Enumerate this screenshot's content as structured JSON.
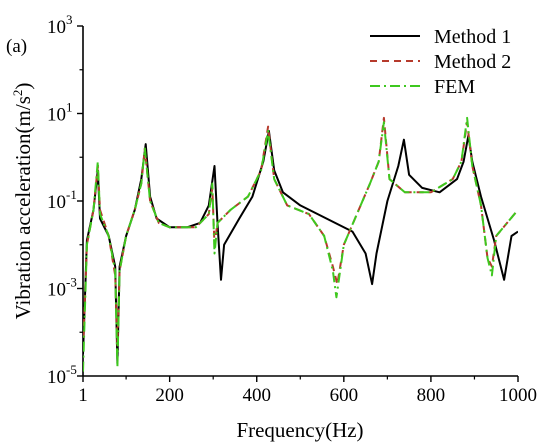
{
  "chart_data": {
    "type": "line",
    "panel_label": "(a)",
    "title": "",
    "xlabel": "Frequency(Hz)",
    "ylabel_main": "Vibration acceleration(m/s",
    "ylabel_sup": "2",
    "ylabel_close": ")",
    "xlim": [
      1,
      1000
    ],
    "ylim_log10": [
      -5,
      3
    ],
    "y_scale": "log",
    "grid": false,
    "legend_position": "top-right",
    "x_ticks": [
      {
        "value": 1,
        "label": "1"
      },
      {
        "value": 200,
        "label": "200"
      },
      {
        "value": 400,
        "label": "400"
      },
      {
        "value": 600,
        "label": "600"
      },
      {
        "value": 800,
        "label": "800"
      },
      {
        "value": 1000,
        "label": "1000"
      }
    ],
    "y_ticks": [
      {
        "exp": -5,
        "base": "10",
        "sup": "-5"
      },
      {
        "exp": -3,
        "base": "10",
        "sup": "-3"
      },
      {
        "exp": -1,
        "base": "10",
        "sup": "-1"
      },
      {
        "exp": 1,
        "base": "10",
        "sup": "1"
      },
      {
        "exp": 3,
        "base": "10",
        "sup": "3"
      }
    ],
    "series": [
      {
        "name": "Method 1",
        "color": "#000000",
        "dash": "",
        "width": 2,
        "points": [
          [
            1,
            -4.5
          ],
          [
            10,
            -1.9
          ],
          [
            25,
            -1.2
          ],
          [
            35,
            -0.3
          ],
          [
            40,
            -1.4
          ],
          [
            60,
            -1.8
          ],
          [
            75,
            -2.5
          ],
          [
            80,
            -4.7
          ],
          [
            85,
            -2.5
          ],
          [
            100,
            -1.8
          ],
          [
            120,
            -1.2
          ],
          [
            135,
            -0.5
          ],
          [
            145,
            0.3
          ],
          [
            155,
            -0.9
          ],
          [
            170,
            -1.4
          ],
          [
            200,
            -1.6
          ],
          [
            240,
            -1.6
          ],
          [
            270,
            -1.5
          ],
          [
            290,
            -1.1
          ],
          [
            303,
            -0.2
          ],
          [
            310,
            -1.5
          ],
          [
            318,
            -2.8
          ],
          [
            325,
            -2.0
          ],
          [
            360,
            -1.4
          ],
          [
            390,
            -0.9
          ],
          [
            415,
            -0.1
          ],
          [
            428,
            0.6
          ],
          [
            440,
            -0.3
          ],
          [
            460,
            -0.8
          ],
          [
            500,
            -1.1
          ],
          [
            560,
            -1.4
          ],
          [
            620,
            -1.7
          ],
          [
            650,
            -2.2
          ],
          [
            665,
            -2.9
          ],
          [
            675,
            -2.2
          ],
          [
            700,
            -1.0
          ],
          [
            725,
            -0.2
          ],
          [
            738,
            0.4
          ],
          [
            750,
            -0.4
          ],
          [
            780,
            -0.7
          ],
          [
            820,
            -0.8
          ],
          [
            860,
            -0.5
          ],
          [
            875,
            -0.1
          ],
          [
            886,
            0.5
          ],
          [
            895,
            -0.1
          ],
          [
            915,
            -0.9
          ],
          [
            945,
            -1.9
          ],
          [
            968,
            -2.8
          ],
          [
            985,
            -1.8
          ],
          [
            1000,
            -1.7
          ]
        ]
      },
      {
        "name": "Method 2",
        "color": "#b63a2c",
        "dash": "7,5",
        "width": 2,
        "points": [
          [
            1,
            -4.4
          ],
          [
            10,
            -2.0
          ],
          [
            25,
            -1.2
          ],
          [
            35,
            -0.2
          ],
          [
            40,
            -1.2
          ],
          [
            60,
            -1.8
          ],
          [
            75,
            -2.7
          ],
          [
            80,
            -4.3
          ],
          [
            85,
            -2.6
          ],
          [
            100,
            -1.8
          ],
          [
            120,
            -1.2
          ],
          [
            135,
            -0.6
          ],
          [
            143,
            0.2
          ],
          [
            155,
            -1.0
          ],
          [
            175,
            -1.5
          ],
          [
            200,
            -1.6
          ],
          [
            260,
            -1.6
          ],
          [
            290,
            -1.3
          ],
          [
            298,
            -0.7
          ],
          [
            303,
            -2.0
          ],
          [
            310,
            -1.5
          ],
          [
            340,
            -1.2
          ],
          [
            380,
            -0.9
          ],
          [
            410,
            -0.3
          ],
          [
            426,
            0.7
          ],
          [
            440,
            -0.5
          ],
          [
            470,
            -1.1
          ],
          [
            520,
            -1.3
          ],
          [
            555,
            -1.8
          ],
          [
            575,
            -2.5
          ],
          [
            585,
            -2.9
          ],
          [
            600,
            -2.0
          ],
          [
            630,
            -1.3
          ],
          [
            660,
            -0.6
          ],
          [
            680,
            -0.1
          ],
          [
            692,
            0.9
          ],
          [
            705,
            -0.5
          ],
          [
            740,
            -0.8
          ],
          [
            800,
            -0.8
          ],
          [
            850,
            -0.5
          ],
          [
            870,
            -0.1
          ],
          [
            883,
            0.8
          ],
          [
            895,
            -0.2
          ],
          [
            915,
            -1.1
          ],
          [
            930,
            -2.3
          ],
          [
            940,
            -2.5
          ],
          [
            950,
            -1.8
          ],
          [
            975,
            -1.5
          ],
          [
            1000,
            -1.2
          ]
        ]
      },
      {
        "name": "FEM",
        "color": "#3ec81e",
        "dash": "10,4,2,4",
        "width": 2,
        "points": [
          [
            1,
            -4.9
          ],
          [
            10,
            -2.0
          ],
          [
            25,
            -1.2
          ],
          [
            35,
            -0.1
          ],
          [
            40,
            -1.3
          ],
          [
            60,
            -1.8
          ],
          [
            75,
            -2.6
          ],
          [
            80,
            -4.8
          ],
          [
            85,
            -2.6
          ],
          [
            100,
            -1.8
          ],
          [
            120,
            -1.2
          ],
          [
            135,
            -0.6
          ],
          [
            143,
            0.2
          ],
          [
            155,
            -1.0
          ],
          [
            175,
            -1.5
          ],
          [
            200,
            -1.6
          ],
          [
            260,
            -1.6
          ],
          [
            290,
            -1.3
          ],
          [
            298,
            -0.6
          ],
          [
            303,
            -2.2
          ],
          [
            310,
            -1.5
          ],
          [
            340,
            -1.2
          ],
          [
            380,
            -0.9
          ],
          [
            410,
            -0.3
          ],
          [
            426,
            0.6
          ],
          [
            440,
            -0.5
          ],
          [
            470,
            -1.1
          ],
          [
            520,
            -1.3
          ],
          [
            555,
            -1.8
          ],
          [
            575,
            -2.6
          ],
          [
            583,
            -3.2
          ],
          [
            600,
            -2.0
          ],
          [
            630,
            -1.3
          ],
          [
            660,
            -0.6
          ],
          [
            680,
            -0.1
          ],
          [
            692,
            0.8
          ],
          [
            705,
            -0.5
          ],
          [
            740,
            -0.8
          ],
          [
            800,
            -0.8
          ],
          [
            850,
            -0.5
          ],
          [
            870,
            -0.1
          ],
          [
            883,
            0.9
          ],
          [
            895,
            -0.2
          ],
          [
            915,
            -1.1
          ],
          [
            930,
            -2.3
          ],
          [
            940,
            -2.7
          ],
          [
            950,
            -1.8
          ],
          [
            975,
            -1.5
          ],
          [
            1000,
            -1.2
          ]
        ]
      }
    ]
  }
}
